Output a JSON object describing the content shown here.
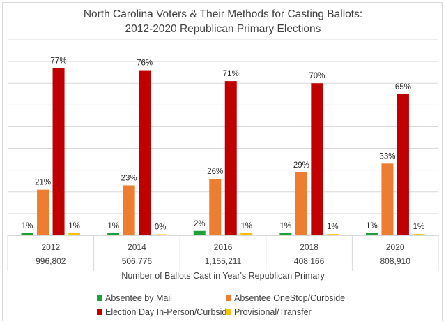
{
  "chart_data": {
    "type": "bar",
    "title": "North Carolina Voters & Their Methods for Casting Ballots:",
    "subtitle": "2012-2020 Republican Primary Elections",
    "xlabel": "Number of Ballots Cast in Year's Republican Primary",
    "ylabel": "",
    "ylim": [
      0,
      90
    ],
    "grid": true,
    "y_axis_labels_visible": false,
    "categories": [
      "2012",
      "2014",
      "2016",
      "2018",
      "2020"
    ],
    "category_totals": [
      "996,802",
      "506,776",
      "1,155,211",
      "408,166",
      "808,910"
    ],
    "series": [
      {
        "name": "Absentee by Mail",
        "color": "#1fa03a",
        "values": [
          1,
          1,
          2,
          1,
          1
        ],
        "labels": [
          "1%",
          "1%",
          "2%",
          "1%",
          "1%"
        ]
      },
      {
        "name": "Absentee OneStop/Curbside",
        "color": "#ed7d31",
        "values": [
          21,
          23,
          26,
          29,
          33
        ],
        "labels": [
          "21%",
          "23%",
          "26%",
          "29%",
          "33%"
        ]
      },
      {
        "name": "Election Day In-Person/Curbside",
        "color": "#c00000",
        "values": [
          77,
          76,
          71,
          70,
          65
        ],
        "labels": [
          "77%",
          "76%",
          "71%",
          "70%",
          "65%"
        ]
      },
      {
        "name": "Provisional/Transfer",
        "color": "#ffc000",
        "values": [
          1,
          0.4,
          1,
          0.6,
          0.6
        ],
        "labels": [
          "1%",
          "0%",
          "1%",
          "1%",
          "1%"
        ]
      }
    ],
    "legend_position": "bottom"
  }
}
